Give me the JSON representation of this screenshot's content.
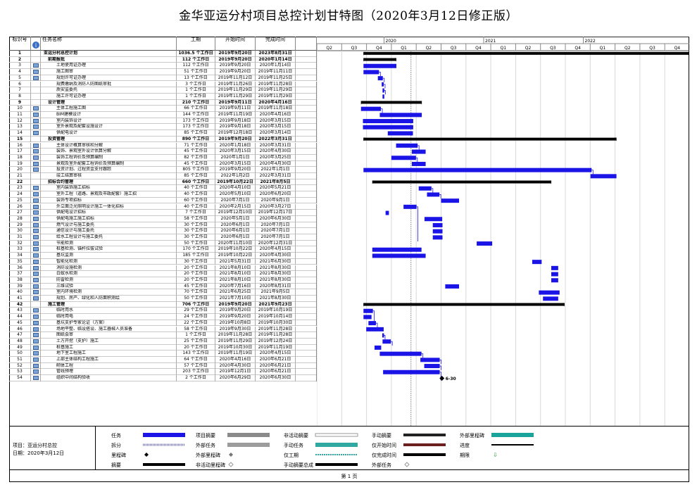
{
  "title": "金华亚运分村项目总控计划甘特图（2020年3月12日修正版）",
  "table_headers": {
    "id": "标识号",
    "info": "i",
    "name": "任务名称",
    "duration": "工期",
    "start": "开始时间",
    "finish": "完成时间"
  },
  "timeline": {
    "years": [
      "2020",
      "2021",
      "2022"
    ],
    "quarters": [
      "Q2",
      "Q3",
      "Q4",
      "Q1",
      "Q2",
      "Q3",
      "Q4",
      "Q1",
      "Q2",
      "Q3",
      "Q4",
      "Q1",
      "Q2",
      "Q3",
      "Q4"
    ]
  },
  "tasks": [
    {
      "id": "1",
      "name": "亚运分村总控计划",
      "duration": "1036.5 个工作日",
      "start": "2019年9月20日",
      "finish": "2023年8月31日",
      "summary": true,
      "icon": false
    },
    {
      "id": "2",
      "name": "前期报批",
      "duration": "112 个工作日",
      "start": "2019年9月20日",
      "finish": "2020年1月14日",
      "summary": true,
      "icon": false
    },
    {
      "id": "3",
      "name": "土地使用证办理",
      "duration": "112 个工作日",
      "start": "2019年9月20日",
      "finish": "2020年1月14日",
      "summary": false,
      "icon": true
    },
    {
      "id": "4",
      "name": "施工图审",
      "duration": "51 个工作日",
      "start": "2019年9月20日",
      "finish": "2019年11月11日",
      "summary": false,
      "icon": true
    },
    {
      "id": "5",
      "name": "规划许可证办理",
      "duration": "13 个工作日",
      "start": "2019年11月12日",
      "finish": "2019年11月25日",
      "summary": false,
      "icon": true
    },
    {
      "id": "6",
      "name": "规费缴纳及消防人防图纸审批",
      "duration": "3 个工作日",
      "start": "2019年11月26日",
      "finish": "2019年11月28日",
      "summary": false,
      "icon": false
    },
    {
      "id": "7",
      "name": "质安监委托",
      "duration": "1 个工作日",
      "start": "2019年11月29日",
      "finish": "2019年11月29日",
      "summary": false,
      "icon": false
    },
    {
      "id": "8",
      "name": "施工许可证办理",
      "duration": "1 个工作日",
      "start": "2019年11月29日",
      "finish": "2019年11月29日",
      "summary": false,
      "icon": false
    },
    {
      "id": "9",
      "name": "设计管理",
      "duration": "210 个工作日",
      "start": "2019年9月11日",
      "finish": "2020年4月16日",
      "summary": true,
      "icon": false
    },
    {
      "id": "10",
      "name": "主体工程施工图",
      "duration": "66 个工作日",
      "start": "2019年9月11日",
      "finish": "2019年11月18日",
      "summary": false,
      "icon": true
    },
    {
      "id": "11",
      "name": "BIM建模设计",
      "duration": "144 个工作日",
      "start": "2019年11月19日",
      "finish": "2020年4月16日",
      "summary": false,
      "icon": true
    },
    {
      "id": "12",
      "name": "室内装饰设计",
      "duration": "173 个工作日",
      "start": "2019年9月18日",
      "finish": "2020年3月15日",
      "summary": false,
      "icon": true
    },
    {
      "id": "13",
      "name": "室外景观及配套设施设计",
      "duration": "173 个工作日",
      "start": "2019年9月18日",
      "finish": "2020年3月15日",
      "summary": false,
      "icon": true
    },
    {
      "id": "14",
      "name": "供配电设计",
      "duration": "85 个工作日",
      "start": "2019年12月18日",
      "finish": "2020年3月14日",
      "summary": false,
      "icon": true
    },
    {
      "id": "15",
      "name": "投资管理",
      "duration": "890 个工作日",
      "start": "2019年9月20日",
      "finish": "2022年3月31日",
      "summary": true,
      "icon": false
    },
    {
      "id": "16",
      "name": "主体设计概算审核和分解",
      "duration": "71 个工作日",
      "start": "2020年1月18日",
      "finish": "2020年3月31日",
      "summary": false,
      "icon": true
    },
    {
      "id": "17",
      "name": "装饰、景观室外设计估算分解",
      "duration": "45 个工作日",
      "start": "2020年3月15日",
      "finish": "2020年4月30日",
      "summary": false,
      "icon": true
    },
    {
      "id": "18",
      "name": "装饰工程询价及预算编制",
      "duration": "82 个工作日",
      "start": "2020年1月1日",
      "finish": "2020年3月25日",
      "summary": false,
      "icon": true
    },
    {
      "id": "19",
      "name": "景观及室外配套工程询价及预算编制",
      "duration": "45 个工作日",
      "start": "2020年3月15日",
      "finish": "2020年4月30日",
      "summary": false,
      "icon": true
    },
    {
      "id": "20",
      "name": "投资计划、过程资金支付跟踪",
      "duration": "805 个工作日",
      "start": "2019年9月20日",
      "finish": "2022年1月1日",
      "summary": false,
      "icon": true
    },
    {
      "id": "21",
      "name": "竣工结算审核",
      "duration": "85 个工作日",
      "start": "2022年1月2日",
      "finish": "2022年3月31日",
      "summary": false,
      "icon": false
    },
    {
      "id": "22",
      "name": "招标合约管理",
      "duration": "660 个工作日",
      "start": "2019年10月22日",
      "finish": "2021年8月5日",
      "summary": true,
      "icon": false
    },
    {
      "id": "23",
      "name": "室内装饰施工招标",
      "duration": "40 个工作日",
      "start": "2020年4月10日",
      "finish": "2020年5月21日",
      "summary": false,
      "icon": true
    },
    {
      "id": "24",
      "name": "室外工程（道路、景观及市政配套）施工招",
      "duration": "40 个工作日",
      "start": "2020年5月10日",
      "finish": "2020年6月20日",
      "summary": false,
      "icon": true
    },
    {
      "id": "25",
      "name": "装饰专项招标",
      "duration": "60 个工作日",
      "start": "2020年7月1日",
      "finish": "2020年9月1日",
      "summary": false,
      "icon": true
    },
    {
      "id": "26",
      "name": "外立面泛光照明设计施工一体化招标",
      "duration": "40 个工作日",
      "start": "2020年2月15日",
      "finish": "2020年3月27日",
      "summary": false,
      "icon": true
    },
    {
      "id": "27",
      "name": "供配电设计招标",
      "duration": "7 个工作日",
      "start": "2019年12月10日",
      "finish": "2019年12月17日",
      "summary": false,
      "icon": true
    },
    {
      "id": "28",
      "name": "供配电施工施工招标",
      "duration": "58 个工作日",
      "start": "2020年5月1日",
      "finish": "2020年6月30日",
      "summary": false,
      "icon": true
    },
    {
      "id": "29",
      "name": "燃气设计与施工委托",
      "duration": "30 个工作日",
      "start": "2020年6月1日",
      "finish": "2020年7月1日",
      "summary": false,
      "icon": true
    },
    {
      "id": "30",
      "name": "通信设计与施工委托",
      "duration": "30 个工作日",
      "start": "2020年6月1日",
      "finish": "2020年7月1日",
      "summary": false,
      "icon": true
    },
    {
      "id": "31",
      "name": "给水工程设计与施工委托",
      "duration": "30 个工作日",
      "start": "2020年6月1日",
      "finish": "2020年7月1日",
      "summary": false,
      "icon": true
    },
    {
      "id": "32",
      "name": "节能检测",
      "duration": "50 个工作日",
      "start": "2020年11月10日",
      "finish": "2020年12月31日",
      "summary": false,
      "icon": true
    },
    {
      "id": "33",
      "name": "桩基检测、锚杆拉拔试验",
      "duration": "170 个工作日",
      "start": "2019年10月22日",
      "finish": "2020年4月15日",
      "summary": false,
      "icon": true
    },
    {
      "id": "34",
      "name": "基坑监测",
      "duration": "185 个工作日",
      "start": "2019年10月22日",
      "finish": "2020年4月30日",
      "summary": false,
      "icon": true
    },
    {
      "id": "35",
      "name": "智能化检测",
      "duration": "30 个工作日",
      "start": "2021年5月31日",
      "finish": "2021年6月30日",
      "summary": false,
      "icon": true
    },
    {
      "id": "36",
      "name": "消防设施检测",
      "duration": "20 个工作日",
      "start": "2021年8月10日",
      "finish": "2021年8月30日",
      "summary": false,
      "icon": true
    },
    {
      "id": "37",
      "name": "白蚁水检测",
      "duration": "20 个工作日",
      "start": "2021年8月10日",
      "finish": "2021年8月30日",
      "summary": false,
      "icon": true
    },
    {
      "id": "38",
      "name": "防雷检测",
      "duration": "20 个工作日",
      "start": "2021年8月10日",
      "finish": "2021年8月30日",
      "summary": false,
      "icon": true
    },
    {
      "id": "39",
      "name": "三维试验",
      "duration": "45 个工作日",
      "start": "2020年7月16日",
      "finish": "2020年8月31日",
      "summary": false,
      "icon": true
    },
    {
      "id": "40",
      "name": "室内环境检测",
      "duration": "70 个工作日",
      "start": "2021年6月25日",
      "finish": "2021年9月5日",
      "summary": false,
      "icon": true
    },
    {
      "id": "41",
      "name": "规划、房产、绿化和人防面积测绘",
      "duration": "50 个工作日",
      "start": "2021年7月10日",
      "finish": "2021年8月30日",
      "summary": false,
      "icon": true
    },
    {
      "id": "42",
      "name": "施工管理",
      "duration": "706 个工作日",
      "start": "2019年9月20日",
      "finish": "2021年9月23日",
      "summary": true,
      "icon": false
    },
    {
      "id": "43",
      "name": "临时用水",
      "duration": "29 个工作日",
      "start": "2019年9月20日",
      "finish": "2019年10月19日",
      "summary": false,
      "icon": true
    },
    {
      "id": "44",
      "name": "临时用电",
      "duration": "24 个工作日",
      "start": "2019年9月20日",
      "finish": "2019年10月14日",
      "summary": false,
      "icon": true
    },
    {
      "id": "45",
      "name": "基坑支护专家论证（方案）",
      "duration": "22 个工作日",
      "start": "2019年10月8日",
      "finish": "2019年10月30日",
      "summary": false,
      "icon": true
    },
    {
      "id": "46",
      "name": "场地平整、临设搭设、施工器械人员准备",
      "duration": "58 个工作日",
      "start": "2019年9月30日",
      "finish": "2019年11月28日",
      "summary": false,
      "icon": true
    },
    {
      "id": "47",
      "name": "图纸会审",
      "duration": "1 个工作日",
      "start": "2019年11月28日",
      "finish": "2019年11月28日",
      "summary": false,
      "icon": true
    },
    {
      "id": "48",
      "name": "土方开挖（支护）施工",
      "duration": "25 个工作日",
      "start": "2019年11月29日",
      "finish": "2019年12月24日",
      "summary": false,
      "icon": true
    },
    {
      "id": "49",
      "name": "桩基施工",
      "duration": "20 个工作日",
      "start": "2019年10月30日",
      "finish": "2019年11月19日",
      "summary": false,
      "icon": true
    },
    {
      "id": "50",
      "name": "地下室工程施工",
      "duration": "143 个工作日",
      "start": "2019年11月19日",
      "finish": "2020年4月15日",
      "summary": false,
      "icon": true
    },
    {
      "id": "51",
      "name": "上部主体结构工程施工",
      "duration": "64 个工作日",
      "start": "2020年4月16日",
      "finish": "2020年6月21日",
      "summary": false,
      "icon": true
    },
    {
      "id": "52",
      "name": "砌体工程",
      "duration": "57 个工作日",
      "start": "2020年4月30日",
      "finish": "2020年6月21日",
      "summary": false,
      "icon": true
    },
    {
      "id": "53",
      "name": "管线预埋",
      "duration": "203 个工作日",
      "start": "2019年12月1日",
      "finish": "2020年6月21日",
      "summary": false,
      "icon": true
    },
    {
      "id": "54",
      "name": "组织中间结构验收",
      "duration": "2 个工作日",
      "start": "2020年6月29日",
      "finish": "2020年6月30日",
      "summary": false,
      "icon": true
    }
  ],
  "milestone_label": "6-30",
  "legend": {
    "project_label": "项目：亚运分村总控",
    "date_label": "日期：2020年3月12日",
    "items": [
      [
        "任务",
        "拆分",
        "里程碑",
        "摘要"
      ],
      [
        "项目摘要",
        "外部任务",
        "外部里程碑",
        "非活动里程碑"
      ],
      [
        "非活动摘要",
        "手动任务",
        "仅工期",
        "手动摘要总成"
      ],
      [
        "手动摘要",
        "仅开始时间",
        "仅完成时间",
        "外部任务"
      ],
      [
        "外部里程碑",
        "进度",
        "期限",
        ""
      ]
    ]
  },
  "footer": "第 1 页",
  "colors": {
    "bar": "#1a14e6",
    "summary": "#000000",
    "grid": "#d8d8d8",
    "teal": "#1aa39a",
    "split": "#6b6bd6"
  }
}
